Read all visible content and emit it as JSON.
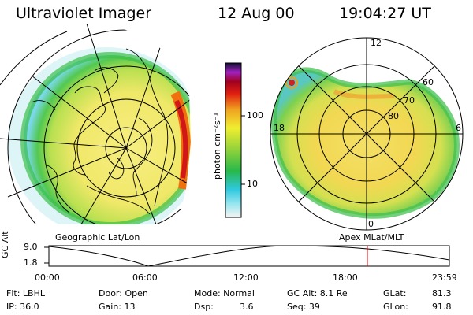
{
  "header": {
    "instrument": "Ultraviolet Imager",
    "date": "12 Aug 00",
    "time": "19:04:27 UT"
  },
  "colorbar": {
    "unit_label": "photon cm⁻²s⁻¹",
    "ticks": [
      "100",
      "10"
    ]
  },
  "left_panel": {
    "caption": "Geographic Lat/Lon"
  },
  "right_panel": {
    "caption": "Apex MLat/MLT",
    "mlt_labels": {
      "top": "12",
      "left": "18",
      "right": "6",
      "bottom": "0"
    },
    "mlat_labels": [
      "60",
      "70",
      "80"
    ]
  },
  "altitude_plot": {
    "ylabel": "GC Alt",
    "yticks": [
      "9.0",
      "1.8"
    ],
    "xticks": [
      "00:00",
      "06:00",
      "12:00",
      "18:00",
      "23:59"
    ],
    "marker_time": "19:04",
    "marker_color": "#e00000"
  },
  "status": {
    "row1": {
      "flt": "Flt: LBHL",
      "door": "Door: Open",
      "mode": "Mode: Normal",
      "gcalt": "GC Alt: 8.1 Re",
      "glat_label": "GLat:",
      "glat_value": "81.3"
    },
    "row2": {
      "ip": "IP: 36.0",
      "gain": "Gain: 13",
      "dsp_label": "Dsp:",
      "dsp_value": "3.6",
      "seq": "Seq: 39",
      "glon_label": "GLon:",
      "glon_value": "91.8"
    }
  }
}
